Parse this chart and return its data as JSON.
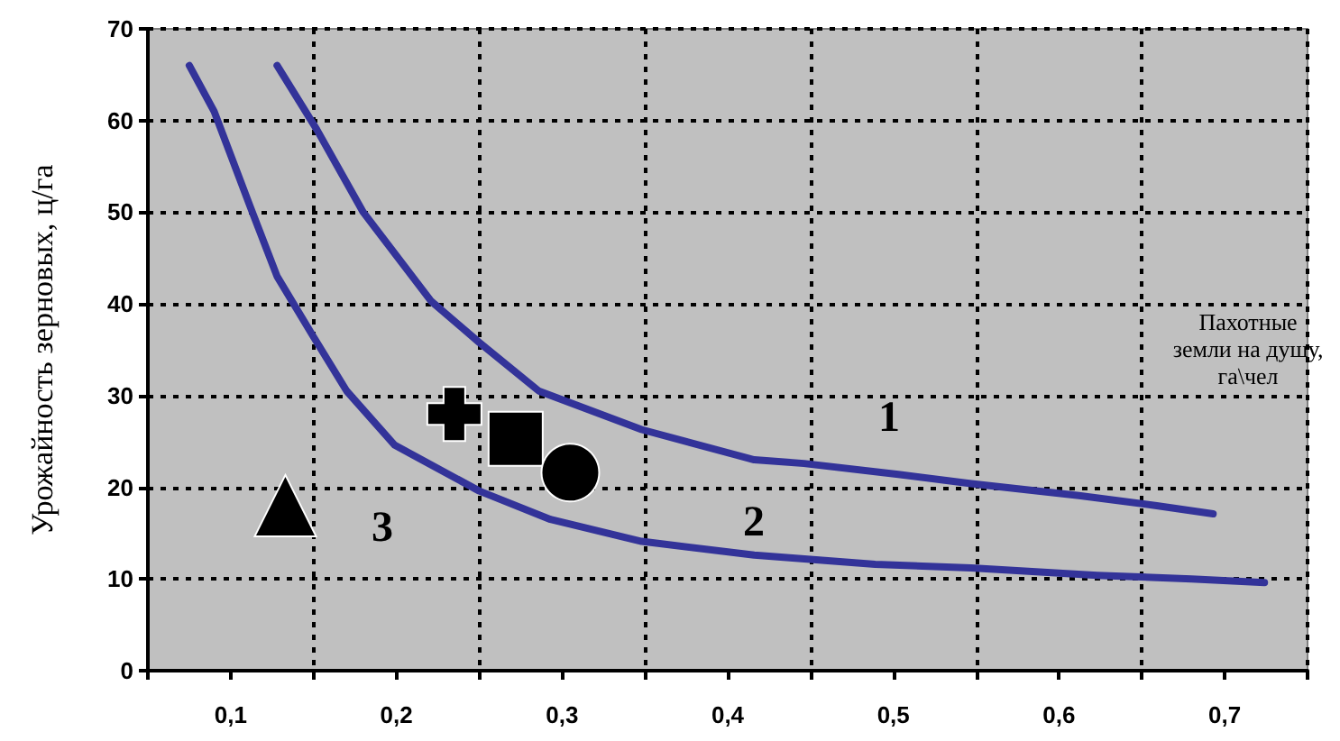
{
  "chart_data": {
    "type": "line",
    "xlabel": "Пахотные земли на душу, га\\чел",
    "ylabel": "Урожайность зерновых, ц/га",
    "xlim": [
      0.05,
      0.75
    ],
    "ylim": [
      0,
      70
    ],
    "xticks": [
      {
        "value": 0.05,
        "label": null
      },
      {
        "value": 0.1,
        "label": "0,1"
      },
      {
        "value": 0.15,
        "label": null
      },
      {
        "value": 0.2,
        "label": "0,2"
      },
      {
        "value": 0.25,
        "label": null
      },
      {
        "value": 0.3,
        "label": "0,3"
      },
      {
        "value": 0.35,
        "label": null
      },
      {
        "value": 0.4,
        "label": "0,4"
      },
      {
        "value": 0.45,
        "label": null
      },
      {
        "value": 0.5,
        "label": "0,5"
      },
      {
        "value": 0.55,
        "label": null
      },
      {
        "value": 0.6,
        "label": "0,6"
      },
      {
        "value": 0.65,
        "label": null
      },
      {
        "value": 0.7,
        "label": "0,7"
      },
      {
        "value": 0.75,
        "label": null
      }
    ],
    "yticks": [
      0,
      10,
      20,
      30,
      40,
      50,
      60,
      70
    ],
    "grid": true,
    "line_style": "solid",
    "marker": "none",
    "series": [
      {
        "color": "#333399",
        "x": [
          0.128,
          0.152,
          0.18,
          0.221,
          0.25,
          0.286,
          0.348,
          0.416,
          0.446,
          0.503,
          0.547,
          0.612,
          0.659,
          0.693
        ],
        "values": [
          66,
          59,
          50,
          40.3,
          35.8,
          30.5,
          26.3,
          23,
          22.6,
          21.4,
          20.4,
          19.1,
          18,
          17.1
        ]
      },
      {
        "color": "#333399",
        "x": [
          0.075,
          0.09,
          0.112,
          0.128,
          0.15,
          0.17,
          0.199,
          0.25,
          0.293,
          0.348,
          0.416,
          0.489,
          0.547,
          0.623,
          0.68,
          0.724
        ],
        "values": [
          66,
          61,
          50.5,
          43,
          36.4,
          30.5,
          24.6,
          19.6,
          16.5,
          14.1,
          12.6,
          11.6,
          11.2,
          10.4,
          10,
          9.6
        ]
      },
      {
        "type": "scatter",
        "marker": "triangle",
        "color": "#000000",
        "x": [
          0.133
        ],
        "values": [
          18
        ]
      },
      {
        "type": "scatter",
        "marker": "cross",
        "color": "#000000",
        "x": [
          0.235
        ],
        "values": [
          28
        ]
      },
      {
        "type": "scatter",
        "marker": "square",
        "color": "#000000",
        "x": [
          0.272
        ],
        "values": [
          25.3
        ]
      },
      {
        "type": "scatter",
        "marker": "circle",
        "color": "#000000",
        "x": [
          0.305
        ],
        "values": [
          21.6
        ]
      }
    ],
    "annotations": [
      "1",
      "2",
      "3"
    ]
  }
}
